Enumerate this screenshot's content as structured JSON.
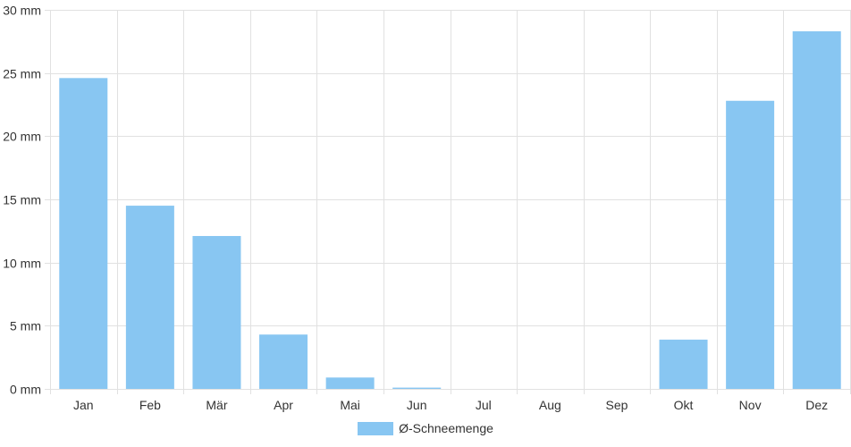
{
  "chart_data": {
    "type": "bar",
    "categories": [
      "Jan",
      "Feb",
      "Mär",
      "Apr",
      "Mai",
      "Jun",
      "Jul",
      "Aug",
      "Sep",
      "Okt",
      "Nov",
      "Dez"
    ],
    "series": [
      {
        "name": "Ø-Schneemenge",
        "values": [
          24.6,
          14.5,
          12.1,
          4.3,
          0.9,
          0.1,
          0,
          0,
          0,
          3.9,
          22.8,
          28.3
        ],
        "color": "#88c6f2"
      }
    ],
    "y_ticks": [
      "0 mm",
      "5 mm",
      "10 mm",
      "15 mm",
      "20 mm",
      "25 mm",
      "30 mm"
    ],
    "ylim": [
      0,
      30
    ],
    "grid": true,
    "legend_position": "bottom",
    "title": "",
    "xlabel": "",
    "ylabel": ""
  }
}
